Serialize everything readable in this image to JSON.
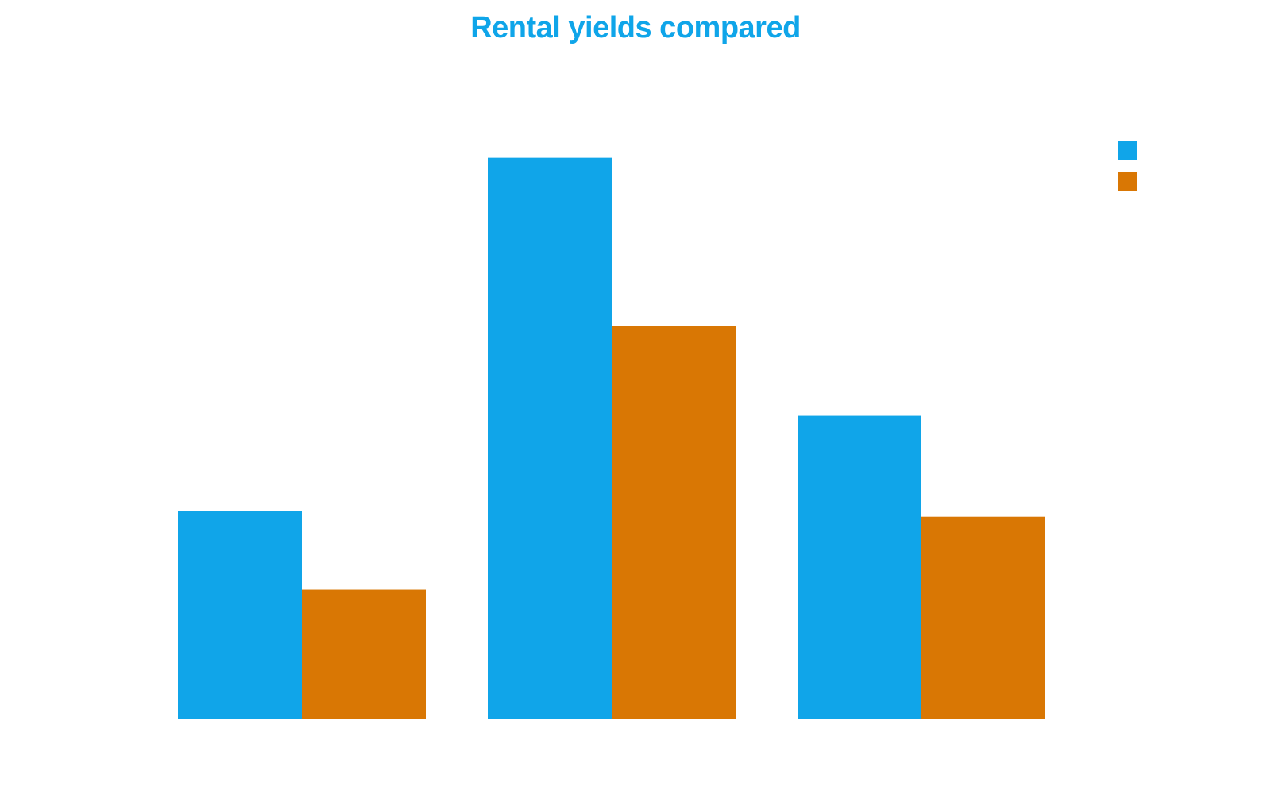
{
  "colors": {
    "title": "#0fa5e9",
    "series_1": "#10a5e9",
    "series_2": "#d97704",
    "background": "#ffffff"
  },
  "chart_data": {
    "type": "bar",
    "title": "Rental yields compared",
    "categories": [
      "",
      "",
      ""
    ],
    "series": [
      {
        "values": [
          3.7,
          10.0,
          5.4
        ]
      },
      {
        "values": [
          2.3,
          7.0,
          3.6
        ]
      }
    ],
    "ylim": [
      0,
      11
    ],
    "grid": false,
    "legend": "top-right",
    "xlabel": "",
    "ylabel": ""
  }
}
